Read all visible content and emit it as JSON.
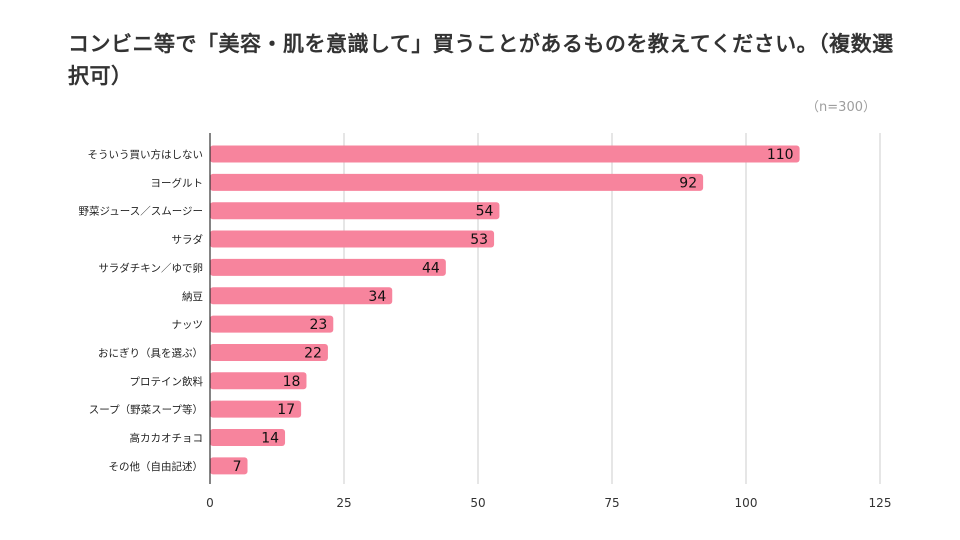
{
  "chart_data": {
    "type": "bar",
    "orientation": "horizontal",
    "title": "コンビニ等で「美容・肌を意識して」買うことがあるものを教えてください。（複数選択可）",
    "note": "（n=300）",
    "categories": [
      "そういう買い方はしない",
      "ヨーグルト",
      "野菜ジュース／スムージー",
      "サラダ",
      "サラダチキン／ゆで卵",
      "納豆",
      "ナッツ",
      "おにぎり（具を選ぶ）",
      "プロテイン飲料",
      "スープ（野菜スープ等）",
      "高カカオチョコ",
      "その他（自由記述）"
    ],
    "values": [
      110,
      92,
      54,
      53,
      44,
      34,
      23,
      22,
      18,
      17,
      14,
      7
    ],
    "xlim": [
      0,
      125
    ],
    "xticks": [
      "0",
      "25",
      "50",
      "75",
      "100",
      "125"
    ],
    "grid": "vertical",
    "bar_color": "#f7849d",
    "grid_color": "#cccccc",
    "axis_color": "#333333"
  }
}
